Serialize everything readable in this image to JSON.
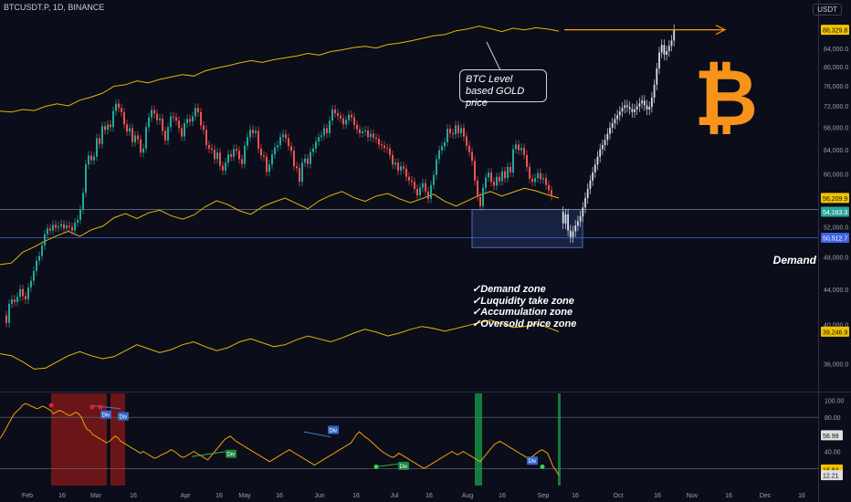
{
  "symbol": "BTCUSDT.P, 1D, BINANCE",
  "currency": "USDT",
  "callout": {
    "line1": "BTC Level",
    "line2": "based GOLD price"
  },
  "demand_label": "Demand",
  "zones": [
    "✓Demand zone",
    "✓Luquidity take zone",
    "✓Accumulation zone",
    "✓Oversold price zone"
  ],
  "logo_icon": "bitcoin-icon",
  "colors": {
    "up": "#26a69a",
    "down": "#ef5350",
    "gold": "#e6b800",
    "projection": "#d9dde6",
    "target": "#ff9800",
    "zone": "#2a3a6e",
    "demand_line": "#3d63e6",
    "osc": "#f0a500"
  },
  "chart_data": {
    "type": "candlestick",
    "y_axis": {
      "scale": "log",
      "ticks": [
        36000,
        40000,
        44000,
        48000,
        52000,
        56000,
        60000,
        64000,
        68000,
        72000,
        76000,
        80000,
        84000
      ],
      "range": [
        33500,
        92000
      ]
    },
    "x_axis": {
      "ticks": [
        "Feb",
        "16",
        "Mar",
        "16",
        "Apr",
        "16",
        "May",
        "16",
        "Jun",
        "16",
        "Jul",
        "16",
        "Aug",
        "16",
        "Sep",
        "16",
        "Oct",
        "16",
        "Nov",
        "16",
        "Dec",
        "16"
      ]
    },
    "price_labels": [
      {
        "text": "88,329.8",
        "value": 88329.8,
        "color": "#f2c300"
      },
      {
        "text": "56,209.9",
        "value": 56209.9,
        "color": "#f2c300"
      },
      {
        "text": "54,163.3",
        "value": 54163.3,
        "color": "#26a69a"
      },
      {
        "text": "50,512.7",
        "value": 50512.7,
        "color": "#3d63e6"
      },
      {
        "text": "39,246.9",
        "value": 39246.9,
        "color": "#f2c300"
      }
    ],
    "close": [
      41000,
      40200,
      42300,
      42800,
      42500,
      43100,
      44000,
      43200,
      42800,
      44200,
      45000,
      46200,
      47500,
      48100,
      49500,
      51000,
      51800,
      51500,
      52300,
      51900,
      52100,
      52400,
      51800,
      52200,
      52000,
      51500,
      52600,
      53000,
      54500,
      57000,
      61500,
      63000,
      62200,
      62800,
      66000,
      65000,
      68200,
      67500,
      68500,
      68000,
      71000,
      72400,
      71600,
      70800,
      68500,
      67200,
      67800,
      65300,
      66500,
      65800,
      63500,
      64200,
      68000,
      69800,
      71200,
      70500,
      69300,
      69600,
      67300,
      65600,
      68000,
      70000,
      69800,
      69200,
      67800,
      66300,
      68700,
      69500,
      69000,
      70000,
      71600,
      70800,
      68300,
      67500,
      64800,
      64200,
      64000,
      62400,
      63500,
      61300,
      60500,
      61800,
      63200,
      62800,
      64100,
      63800,
      62400,
      61600,
      64700,
      66200,
      67500,
      66900,
      67300,
      64200,
      63000,
      62800,
      60300,
      61500,
      63200,
      64400,
      64800,
      66200,
      66700,
      66000,
      64600,
      63800,
      61200,
      60900,
      58700,
      61800,
      62500,
      61600,
      63600,
      64200,
      65400,
      66200,
      66500,
      67800,
      66900,
      69200,
      71300,
      70600,
      70100,
      69600,
      68500,
      69300,
      70300,
      69800,
      68400,
      67600,
      66900,
      67200,
      67400,
      66200,
      66800,
      66100,
      65900,
      64900,
      64700,
      64300,
      64200,
      63100,
      61500,
      61800,
      60500,
      61200,
      60800,
      59500,
      58900,
      58700,
      57600,
      56600,
      57800,
      58500,
      57200,
      56100,
      58200,
      59800,
      62400,
      63900,
      64600,
      65300,
      67700,
      66900,
      66700,
      68300,
      66900,
      67800,
      66300,
      64700,
      63600,
      62100,
      58900,
      56400,
      55000,
      57800,
      59400,
      60200,
      58700,
      58100,
      59500,
      58800,
      60400,
      59300,
      61100,
      60200,
      64100,
      64900,
      63900,
      64300,
      63100,
      61100,
      59200,
      58700,
      59300,
      60100,
      59100,
      59300,
      58200,
      57400,
      56500
    ],
    "projection_close": [
      54163,
      52500,
      53800,
      51500,
      50600,
      51400,
      52200,
      52800,
      53500,
      54800,
      56200,
      57600,
      58900,
      60200,
      61500,
      62800,
      64100,
      64800,
      65700,
      66800,
      67900,
      68700,
      69500,
      70200,
      70900,
      71600,
      72100,
      71800,
      71400,
      70800,
      71300,
      71900,
      72500,
      73000,
      72100,
      71300,
      71800,
      73600,
      76200,
      79600,
      83100,
      84800,
      82600,
      83400,
      84600,
      85800,
      88329
    ],
    "gold_upper": [
      71000,
      70800,
      71300,
      71100,
      71900,
      72400,
      72000,
      73100,
      73700,
      74500,
      75900,
      76200,
      77000,
      76600,
      77300,
      77800,
      78300,
      78000,
      79100,
      79700,
      80200,
      80800,
      81300,
      80900,
      81500,
      81900,
      82300,
      82900,
      82500,
      83300,
      83700,
      84200,
      84500,
      84100,
      84900,
      85200,
      85700,
      86300,
      86900,
      87200,
      88100,
      88500,
      89200,
      88600,
      87900,
      88700,
      88300,
      88800,
      88500,
      88000
    ],
    "gold_middle": [
      47000,
      47200,
      48600,
      49300,
      50100,
      50800,
      51400,
      50700,
      51600,
      52100,
      53300,
      53900,
      53200,
      54000,
      54400,
      53600,
      53100,
      53700,
      54900,
      55800,
      55200,
      54300,
      53800,
      54900,
      55600,
      56200,
      55400,
      54600,
      55800,
      56600,
      57200,
      56300,
      55700,
      56500,
      56900,
      56100,
      55500,
      56100,
      56800,
      55700,
      55000,
      55800,
      56600,
      57200,
      56500,
      57100,
      57700,
      57300,
      56700,
      56200
    ],
    "gold_lower": [
      37000,
      36800,
      36200,
      35500,
      35600,
      36200,
      36800,
      37200,
      36800,
      36500,
      36700,
      37300,
      37900,
      37500,
      37100,
      37400,
      37900,
      38200,
      37700,
      37300,
      37600,
      38200,
      38500,
      38100,
      37700,
      37900,
      38400,
      38800,
      38500,
      38200,
      38600,
      39100,
      39500,
      39200,
      38800,
      39100,
      39500,
      39800,
      39600,
      39300,
      39600,
      39900,
      40200,
      40500,
      40100,
      39700,
      39800,
      40100,
      39700,
      39246
    ],
    "annotations": {
      "demand_zone": [
        49200,
        54500
      ],
      "demand_line": 50512.7,
      "target": 88329.8
    },
    "oscillator": {
      "ticks": [
        100,
        80,
        60,
        40,
        20
      ],
      "labels": [
        {
          "text": "58.99",
          "value": 58.99
        },
        {
          "text": "18.84",
          "value": 18.84
        },
        {
          "text": "12.21",
          "value": 12.21
        }
      ],
      "levels": [
        80,
        20
      ],
      "values": [
        55,
        60,
        66,
        72,
        78,
        84,
        87,
        90,
        94,
        96,
        95,
        93,
        92,
        90,
        91,
        93,
        92,
        90,
        88,
        84,
        86,
        88,
        87,
        85,
        83,
        82,
        84,
        86,
        84,
        80,
        72,
        66,
        64,
        60,
        58,
        56,
        54,
        52,
        50,
        52,
        55,
        58,
        56,
        52,
        50,
        48,
        46,
        44,
        42,
        40,
        38,
        40,
        38,
        36,
        34,
        32,
        33,
        35,
        37,
        38,
        40,
        42,
        40,
        38,
        35,
        33,
        34,
        36,
        38,
        40,
        38,
        36,
        34,
        32,
        30,
        34,
        38,
        42,
        46,
        50,
        54,
        56,
        58,
        55,
        52,
        50,
        48,
        46,
        44,
        42,
        40,
        38,
        36,
        34,
        32,
        30,
        28,
        30,
        32,
        34,
        36,
        38,
        40,
        42,
        40,
        38,
        36,
        34,
        32,
        30,
        28,
        26,
        24,
        26,
        28,
        30,
        32,
        34,
        36,
        38,
        40,
        42,
        44,
        46,
        48,
        50,
        55,
        60,
        63,
        60,
        57,
        55,
        52,
        49,
        46,
        43,
        40,
        38,
        36,
        34,
        33,
        35,
        38,
        36,
        34,
        32,
        30,
        28,
        26,
        24,
        22,
        20,
        22,
        24,
        26,
        28,
        30,
        32,
        34,
        36,
        38,
        40,
        38,
        36,
        38,
        40,
        38,
        36,
        34,
        32,
        30,
        28,
        32,
        36,
        40,
        44,
        48,
        50,
        52,
        50,
        48,
        46,
        44,
        42,
        40,
        38,
        36,
        34,
        32,
        33,
        35,
        38,
        40,
        42,
        40,
        38,
        30,
        22,
        18,
        12
      ],
      "divergence_labels": [
        "Div",
        "Div",
        "Div",
        "Div",
        "Div",
        "Div"
      ]
    }
  }
}
